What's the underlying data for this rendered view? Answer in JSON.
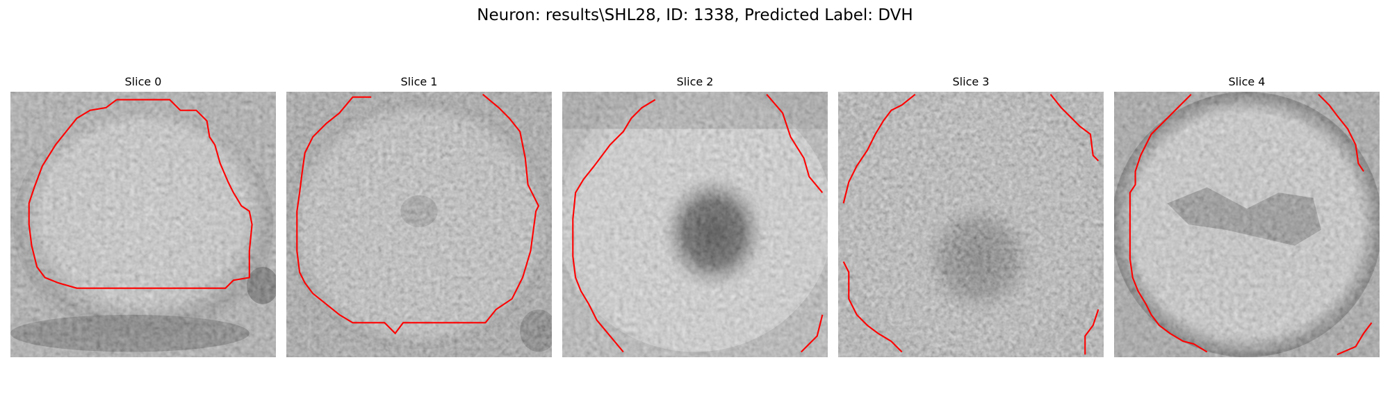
{
  "figure": {
    "title": "Neuron: results\\SHL28, ID: 1338, Predicted Label: DVH"
  },
  "slices": [
    {
      "title": "Slice 0",
      "contour_color": "#ff0000"
    },
    {
      "title": "Slice 1",
      "contour_color": "#ff0000"
    },
    {
      "title": "Slice 2",
      "contour_color": "#ff0000"
    },
    {
      "title": "Slice 3",
      "contour_color": "#ff0000"
    },
    {
      "title": "Slice 4",
      "contour_color": "#ff0000"
    }
  ]
}
